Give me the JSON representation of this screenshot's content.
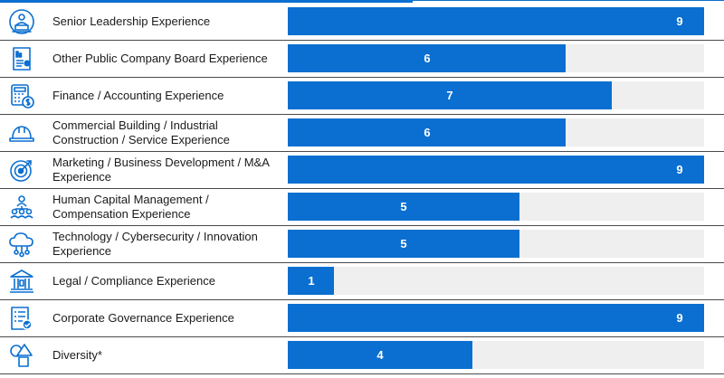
{
  "chart_data": {
    "type": "bar",
    "orientation": "horizontal",
    "title": "",
    "xlabel": "",
    "ylabel": "",
    "xlim": [
      0,
      9
    ],
    "grid": false,
    "legend": "none",
    "bar_color": "#0a6fd0",
    "track_color": "#efefef",
    "categories": [
      {
        "label": "Senior Leadership Experience",
        "value": 9,
        "icon": "leader-podium-icon"
      },
      {
        "label": "Other Public Company Board Experience",
        "value": 6,
        "icon": "report-chart-icon"
      },
      {
        "label": "Finance / Accounting Experience",
        "value": 7,
        "icon": "calculator-dollar-icon"
      },
      {
        "label": "Commercial Building / Industrial Construction / Service Experience",
        "value": 6,
        "icon": "hard-hat-icon"
      },
      {
        "label": "Marketing / Business Development / M&A Experience",
        "value": 9,
        "icon": "target-icon"
      },
      {
        "label": "Human Capital Management / Compensation Experience",
        "value": 5,
        "icon": "people-group-icon"
      },
      {
        "label": "Technology / Cybersecurity / Innovation Experience",
        "value": 5,
        "icon": "cloud-network-icon"
      },
      {
        "label": "Legal / Compliance Experience",
        "value": 1,
        "icon": "courthouse-icon"
      },
      {
        "label": "Corporate Governance Experience",
        "value": 9,
        "icon": "checklist-icon"
      },
      {
        "label": "Diversity*",
        "value": 4,
        "icon": "shapes-icon"
      }
    ]
  }
}
